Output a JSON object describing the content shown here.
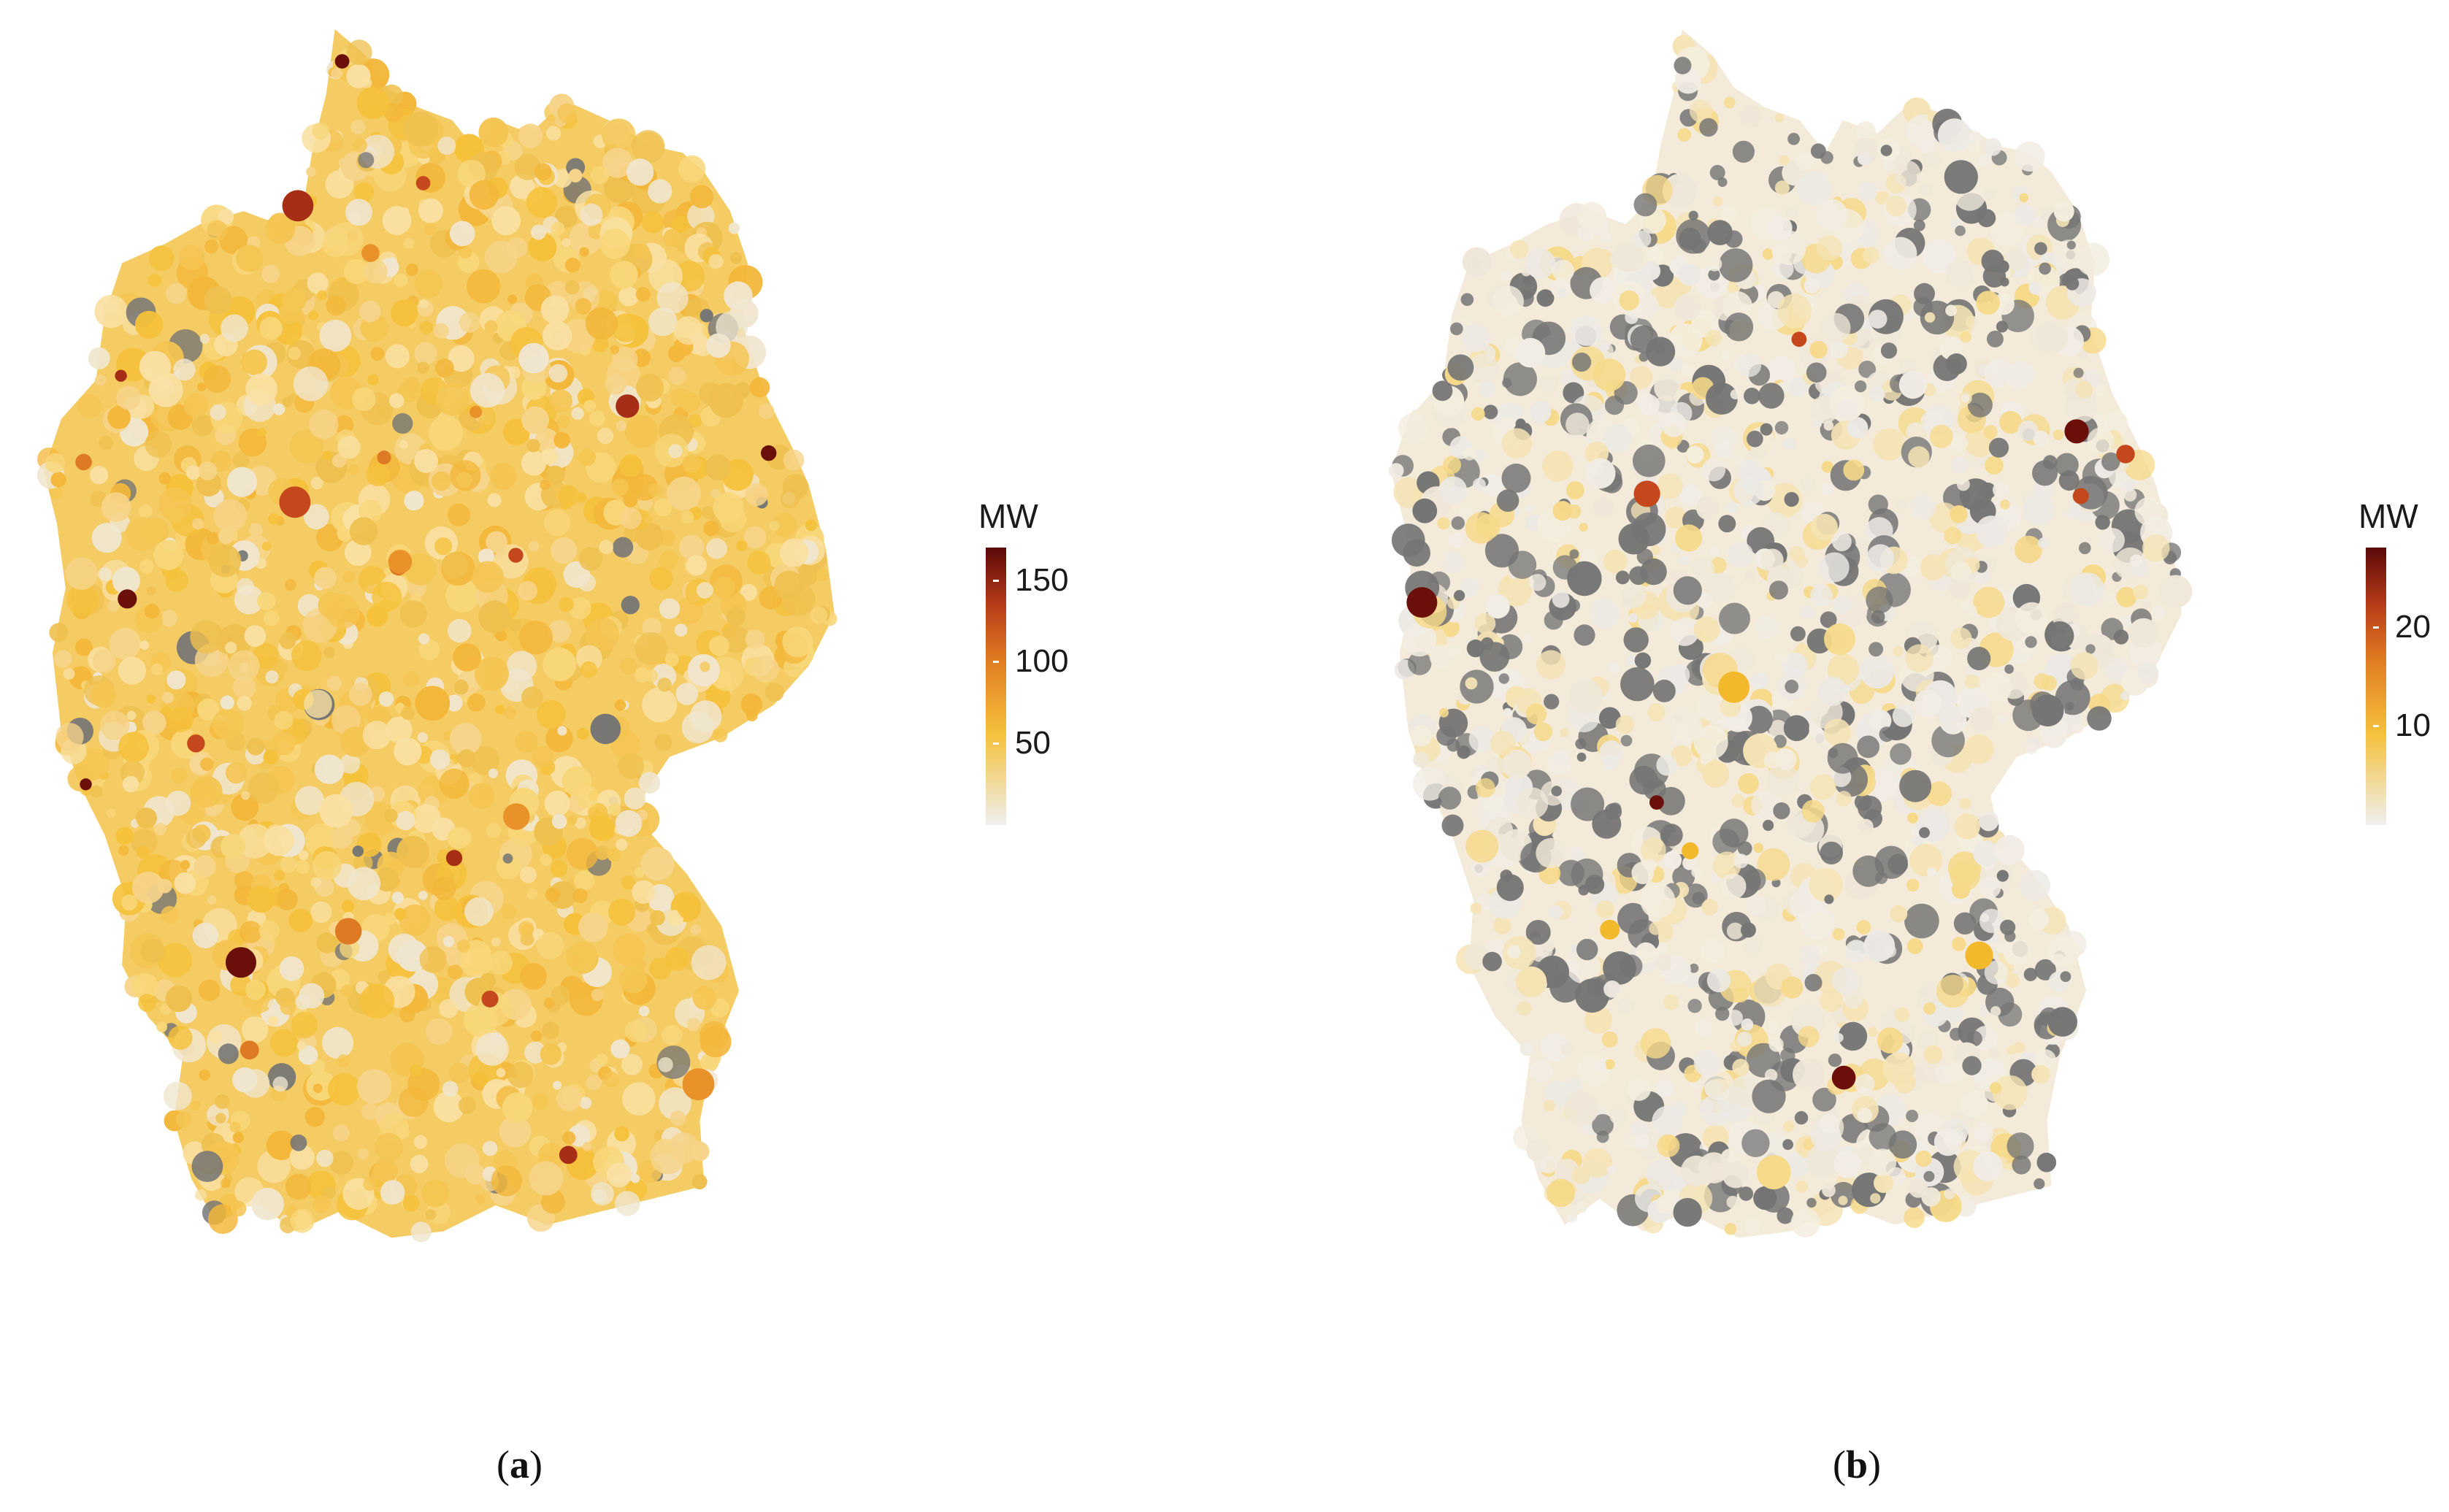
{
  "panels": [
    {
      "id": "a",
      "caption_open": "(",
      "caption_letter": "a",
      "caption_close": ")",
      "legend": {
        "title": "MW",
        "ticks": [
          {
            "value": 150,
            "label": "150"
          },
          {
            "value": 100,
            "label": "100"
          },
          {
            "value": 50,
            "label": "50"
          }
        ],
        "range": [
          0,
          170
        ]
      },
      "map": {
        "base_color": "#f5cc63",
        "no_data_color": "#757575",
        "hotspots": [
          {
            "color": "#6b0f0a"
          },
          {
            "color": "#a62d16"
          },
          {
            "color": "#c4481c"
          },
          {
            "color": "#df7a24"
          },
          {
            "color": "#e9922a"
          }
        ]
      }
    },
    {
      "id": "b",
      "caption_open": "(",
      "caption_letter": "b",
      "caption_close": ")",
      "legend": {
        "title": "MW",
        "ticks": [
          {
            "value": 20,
            "label": "20"
          },
          {
            "value": 10,
            "label": "10"
          }
        ],
        "range": [
          0,
          28
        ]
      },
      "map": {
        "base_color": "#f3ead9",
        "no_data_color": "#757575",
        "hotspots": [
          {
            "color": "#6b0f0a"
          },
          {
            "color": "#c4481c"
          },
          {
            "color": "#f2b92c"
          }
        ]
      }
    }
  ],
  "colors": {
    "scale_low": "#efefef",
    "scale_mid_low": "#f5c13a",
    "scale_mid": "#e07a22",
    "scale_mid_high": "#b53a18",
    "scale_high": "#5a0808",
    "no_data": "#757575"
  }
}
